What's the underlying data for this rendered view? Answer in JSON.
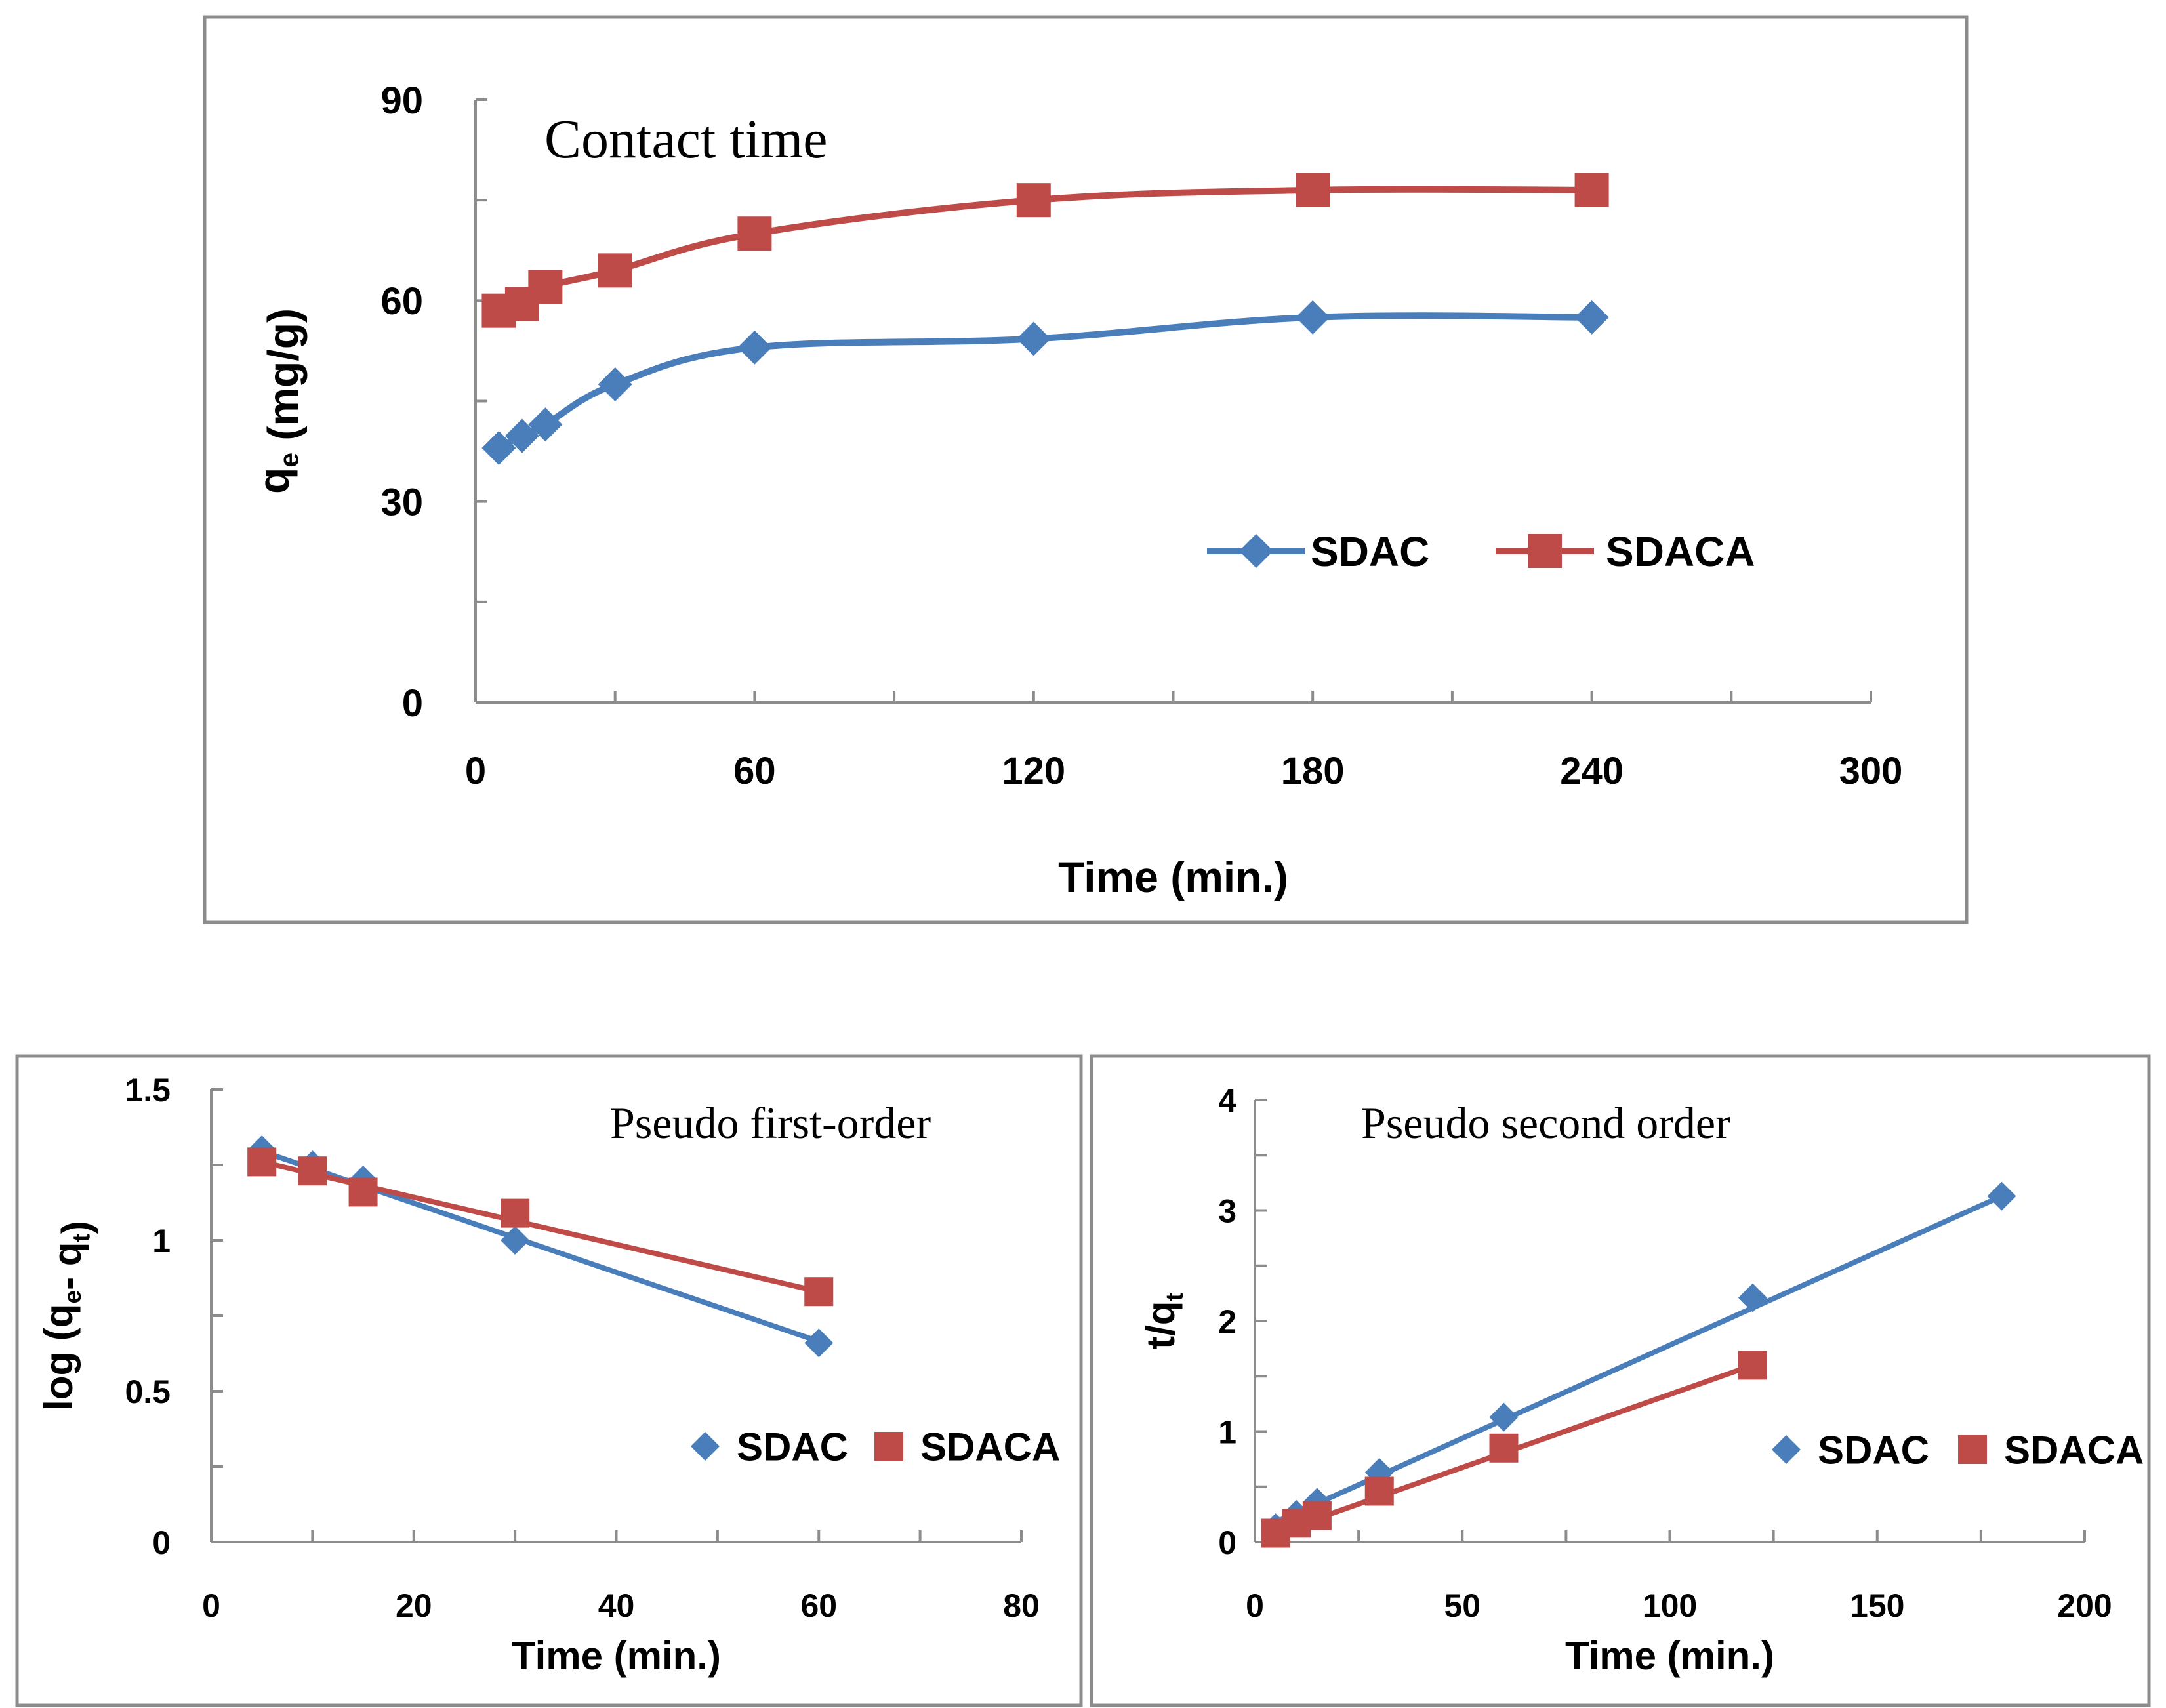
{
  "colors": {
    "sdac": "#4a7ebb",
    "sdaca": "#be4b48"
  },
  "chart_data": [
    {
      "type": "line",
      "title": "Contact time",
      "xlabel": "Time (min.)",
      "ylabel": {
        "main": "q",
        "sub": "e",
        "rest": " (mg/g)"
      },
      "xlim": [
        0,
        300
      ],
      "ylim": [
        0,
        90
      ],
      "xticks": [
        0,
        60,
        120,
        180,
        240,
        300
      ],
      "yticks": [
        0,
        30,
        60,
        90
      ],
      "x_minor_step": 30,
      "y_minor_step": 15,
      "curve": "smooth",
      "legend_position": "center-right",
      "series": [
        {
          "name": "SDAC",
          "marker": "diamond",
          "x": [
            5,
            10,
            15,
            30,
            60,
            120,
            180,
            240
          ],
          "y": [
            38.0,
            39.8,
            41.5,
            47.5,
            53.0,
            54.3,
            57.5,
            57.5
          ]
        },
        {
          "name": "SDACA",
          "marker": "square",
          "x": [
            5,
            10,
            15,
            30,
            60,
            120,
            180,
            240
          ],
          "y": [
            58.5,
            59.5,
            62.0,
            64.5,
            70.0,
            75.0,
            76.5,
            76.5
          ]
        }
      ]
    },
    {
      "type": "scatter",
      "title": "Pseudo first-order",
      "xlabel": "Time (min.)",
      "ylabel": {
        "main": "log (q",
        "sub": "e",
        "mid": "- q",
        "sub2": "t",
        "rest": ")"
      },
      "xlim": [
        0,
        80
      ],
      "ylim": [
        0,
        1.5
      ],
      "xticks": [
        0,
        20,
        40,
        60,
        80
      ],
      "yticks": [
        0,
        0.5,
        1,
        1.5
      ],
      "x_minor_step": 10,
      "y_minor_step": 0.25,
      "curve": "trendline",
      "legend_position": "bottom-right",
      "series": [
        {
          "name": "SDAC",
          "marker": "diamond",
          "x": [
            5,
            10,
            15,
            30,
            60
          ],
          "y": [
            1.3,
            1.25,
            1.2,
            1.0,
            0.66
          ],
          "fit": [
            [
              5,
              1.295
            ],
            [
              60,
              0.665
            ]
          ]
        },
        {
          "name": "SDACA",
          "marker": "square",
          "x": [
            5,
            10,
            15,
            30,
            60
          ],
          "y": [
            1.26,
            1.23,
            1.16,
            1.09,
            0.83
          ],
          "fit": [
            [
              5,
              1.26
            ],
            [
              60,
              0.83
            ]
          ]
        }
      ]
    },
    {
      "type": "scatter",
      "title": "Pseudo second order",
      "xlabel": "Time (min.)",
      "ylabel": {
        "main": "t/q",
        "sub": "t",
        "rest": ""
      },
      "xlim": [
        0,
        200
      ],
      "ylim": [
        0,
        4
      ],
      "xticks": [
        0,
        50,
        100,
        150,
        200
      ],
      "yticks": [
        0,
        1,
        2,
        3,
        4
      ],
      "x_minor_step": 25,
      "y_minor_step": 0.5,
      "curve": "trendline",
      "legend_position": "bottom-right",
      "series": [
        {
          "name": "SDAC",
          "marker": "diamond",
          "x": [
            5,
            10,
            15,
            30,
            60,
            120,
            180
          ],
          "y": [
            0.13,
            0.25,
            0.36,
            0.63,
            1.13,
            2.21,
            3.13
          ],
          "fit": [
            [
              5,
              0.18
            ],
            [
              180,
              3.13
            ]
          ]
        },
        {
          "name": "SDACA",
          "marker": "square",
          "x": [
            5,
            10,
            15,
            30,
            60,
            120
          ],
          "y": [
            0.08,
            0.17,
            0.24,
            0.46,
            0.85,
            1.6
          ],
          "fit": [
            [
              5,
              0.08
            ],
            [
              120,
              1.6
            ]
          ]
        }
      ]
    }
  ]
}
